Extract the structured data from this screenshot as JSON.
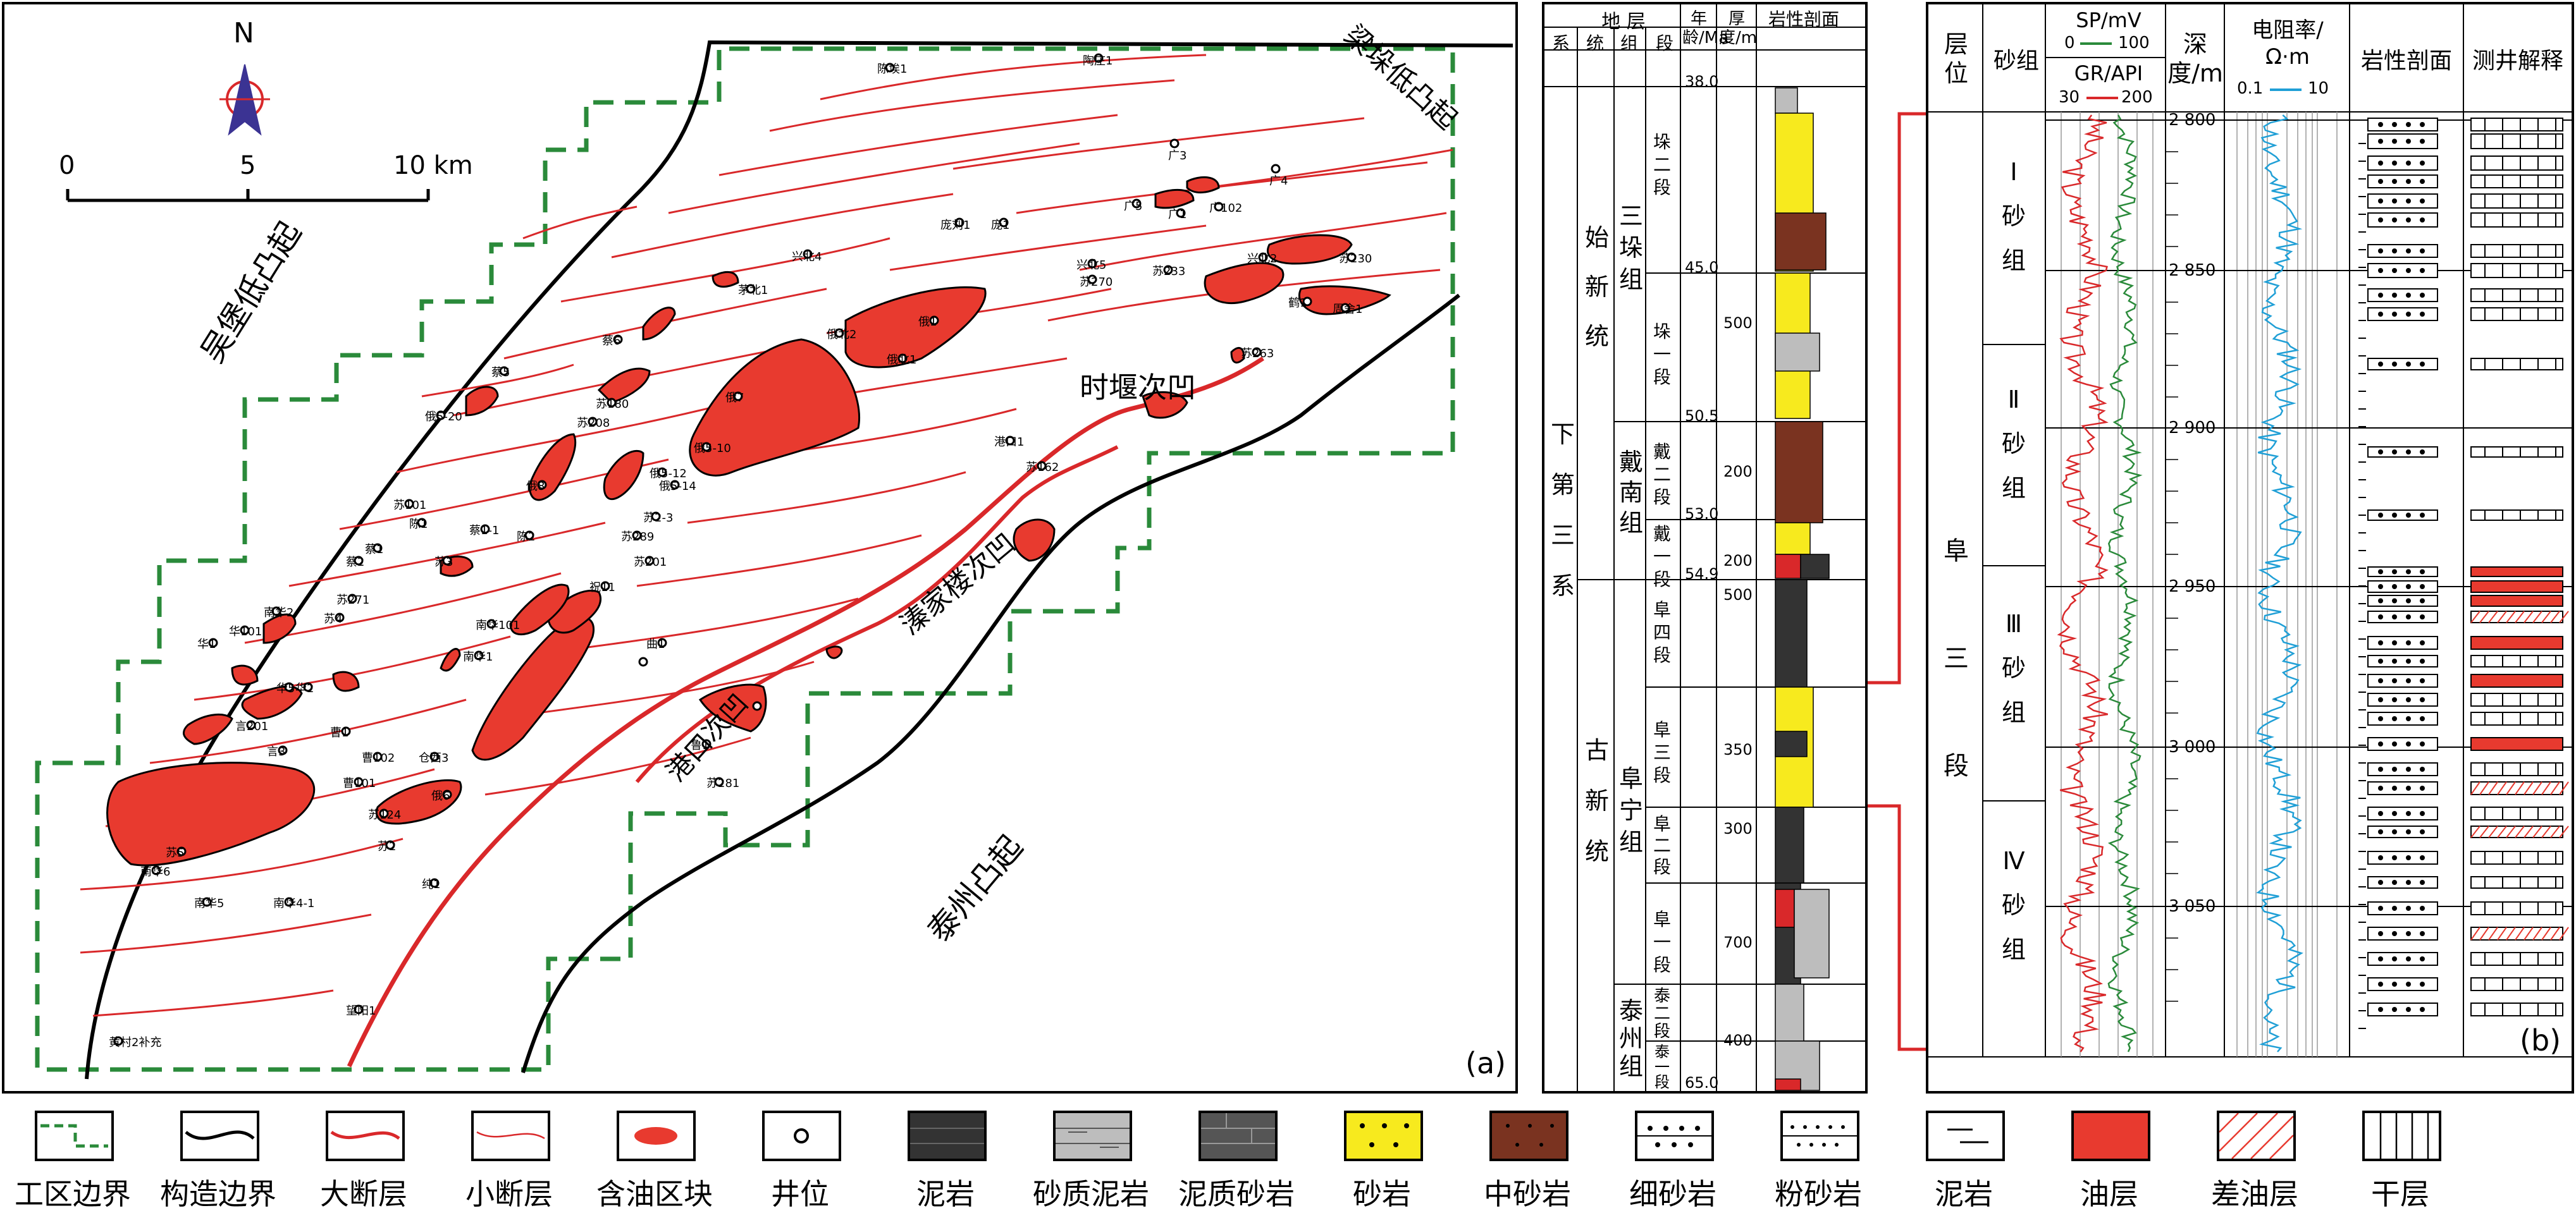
{
  "map": {
    "panel_label": "(a)",
    "north": "N",
    "scale": {
      "t0": "0",
      "t1": "5",
      "t2": "10 km"
    },
    "regions": {
      "wubao": "吴堡低凸起",
      "liangduo": "梁垛低凸起",
      "taizhou": "泰州凸起",
      "shiyan": "时堰次凹",
      "qingjia": "溱家楼次凹",
      "gangkou": "港口次凹"
    },
    "wells": [
      "陈埃1",
      "陶庄1",
      "广3",
      "广5",
      "广1",
      "广102",
      "广4",
      "庞刘1",
      "庞1",
      "兴北4",
      "兴北5",
      "苏233",
      "兴北2",
      "苏230",
      "鹤1",
      "周舍1",
      "苏263",
      "苏270",
      "俄北1",
      "俄北2",
      "俄1",
      "茅北1",
      "蔡6",
      "蔡5",
      "苏180",
      "苏208",
      "俄7",
      "俄5-10",
      "俄5-12",
      "俄5-14",
      "俄5-20",
      "俄8",
      "苏101",
      "陈1",
      "蔡1-1",
      "蔡1",
      "蔡2",
      "苏3",
      "陈2",
      "苏271",
      "苏4",
      "南华101",
      "南华1",
      "南华2",
      "华101",
      "华1",
      "华5",
      "华2",
      "言201",
      "言3",
      "曹101",
      "曹102",
      "曹1",
      "仓西3",
      "俄6",
      "苏124",
      "苏2-3",
      "苏289",
      "苏201",
      "祝11",
      "曲1",
      "鲁1",
      "苏281",
      "苏162",
      "港口1",
      "望阳1",
      "纯1",
      "南华4-1",
      "南华5",
      "南华6",
      "苏5",
      "黄村2补充",
      "苏2"
    ]
  },
  "column1": {
    "header_group": "地 层",
    "headers": [
      "系",
      "统",
      "组",
      "段",
      "年龄/Ma",
      "厚度/m",
      "岩性剖面"
    ],
    "system": "下第三系",
    "series_upper": "始新统",
    "series_lower": "古新统",
    "formations": [
      "三垛组",
      "戴南组",
      "阜宁组",
      "泰州组"
    ],
    "members": [
      "垛二段",
      "垛一段",
      "戴二段",
      "戴一段",
      "阜四段",
      "阜三段",
      "阜二段",
      "阜一段",
      "泰二段",
      "泰一段"
    ],
    "ages": [
      "38.0",
      "45.0",
      "50.5",
      "53.0",
      "54.9",
      "65.0"
    ],
    "thicknesses": [
      "500",
      "200",
      "200",
      "500",
      "350",
      "300",
      "700",
      "400"
    ]
  },
  "column2": {
    "panel_label": "(b)",
    "headers": {
      "layer": "层位",
      "sandgroup": "砂组",
      "sp": "SP/mV",
      "sp_range_min": "0",
      "sp_range_max": "100",
      "gr": "GR/API",
      "gr_range_min": "30",
      "gr_range_max": "200",
      "depth": "深度/m",
      "res": "电阻率/Ω·m",
      "res_min": "0.1",
      "res_max": "10",
      "litho": "岩性剖面",
      "interp": "测井解释"
    },
    "layer_name": "阜三段",
    "sand_groups": [
      "Ⅰ砂组",
      "Ⅱ砂组",
      "Ⅲ砂组",
      "Ⅳ砂组"
    ],
    "depths": [
      "2 800",
      "2 850",
      "2 900",
      "2 950",
      "3 000",
      "3 050"
    ]
  },
  "legend": {
    "items": [
      "工区边界",
      "构造边界",
      "大断层",
      "小断层",
      "含油区块",
      "井位",
      "泥岩",
      "砂质泥岩",
      "泥质砂岩",
      "砂岩",
      "中砂岩",
      "细砂岩",
      "粉砂岩",
      "泥岩",
      "油层",
      "差油层",
      "干层"
    ]
  },
  "colors": {
    "red": "#d9282a",
    "oil": "#e83a2f",
    "green": "#2a8a3a",
    "cyan": "#1f9fd6",
    "yellow": "#f7ea1e",
    "brown": "#7a3320",
    "sandmud": "#bdbdbd",
    "dark": "#333333"
  }
}
